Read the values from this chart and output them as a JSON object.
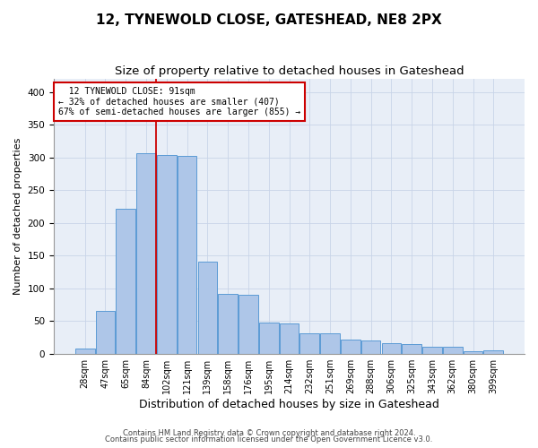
{
  "title1": "12, TYNEWOLD CLOSE, GATESHEAD, NE8 2PX",
  "title2": "Size of property relative to detached houses in Gateshead",
  "xlabel": "Distribution of detached houses by size in Gateshead",
  "ylabel": "Number of detached properties",
  "categories": [
    "28sqm",
    "47sqm",
    "65sqm",
    "84sqm",
    "102sqm",
    "121sqm",
    "139sqm",
    "158sqm",
    "176sqm",
    "195sqm",
    "214sqm",
    "232sqm",
    "251sqm",
    "269sqm",
    "288sqm",
    "306sqm",
    "325sqm",
    "343sqm",
    "362sqm",
    "380sqm",
    "399sqm"
  ],
  "bar_heights": [
    8,
    65,
    222,
    306,
    304,
    302,
    140,
    91,
    90,
    47,
    46,
    31,
    31,
    21,
    20,
    16,
    14,
    11,
    10,
    4,
    5
  ],
  "bar_color": "#aec6e8",
  "bar_edge_color": "#5b9bd5",
  "grid_color": "#c8d4e8",
  "background_color": "#e8eef7",
  "vline_x": 3.5,
  "vline_color": "#cc0000",
  "annotation_text": "  12 TYNEWOLD CLOSE: 91sqm\n← 32% of detached houses are smaller (407)\n67% of semi-detached houses are larger (855) →",
  "annotation_box_color": "#ffffff",
  "annotation_box_edge": "#cc0000",
  "footer1": "Contains HM Land Registry data © Crown copyright and database right 2024.",
  "footer2": "Contains public sector information licensed under the Open Government Licence v3.0.",
  "ylim": [
    0,
    420
  ],
  "title1_fontsize": 11,
  "title2_fontsize": 9.5,
  "xlabel_fontsize": 9,
  "ylabel_fontsize": 8,
  "tick_fontsize": 7,
  "footer_fontsize": 6,
  "annotation_fontsize": 7
}
